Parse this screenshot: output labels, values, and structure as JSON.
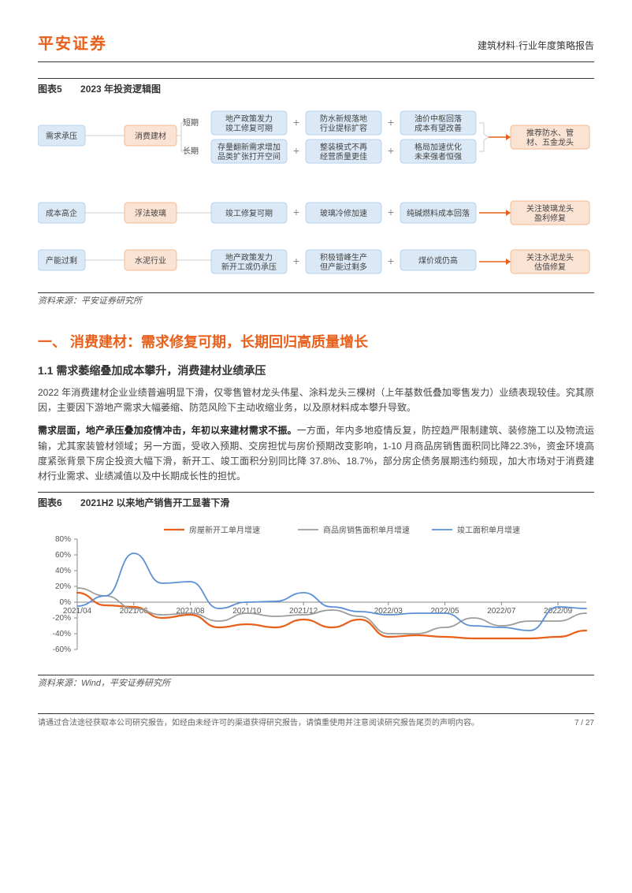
{
  "header": {
    "brand": "平安证券",
    "doc_type": "建筑材料·行业年度策略报告"
  },
  "figure5": {
    "label": "图表5",
    "title": "2023 年投资逻辑图",
    "source": "资料来源：平安证券研究所",
    "diagram": {
      "node_fill_blue": "#dbe9f6",
      "node_fill_orange": "#fbe3d4",
      "node_stroke_blue": "#b7d2eb",
      "node_stroke_orange": "#f0b98f",
      "node_text_color": "#444444",
      "connector_color": "#cccccc",
      "plus_color": "#888888",
      "arrow_color": "#e8601c",
      "font_size": 10,
      "left_nodes": [
        "需求承压",
        "成本高企",
        "产能过剩"
      ],
      "mid_nodes": [
        "消费建材",
        "浮法玻璃",
        "水泥行业"
      ],
      "mid_sublabels_top": [
        "短期",
        "长期"
      ],
      "row1a": [
        "地产政策发力\n竣工修复可期",
        "防水新规落地\n行业提标扩容",
        "油价中枢回落\n成本有望改善"
      ],
      "row1b": [
        "存量翻新需求增加\n品类扩张打开空间",
        "整装模式不再\n经营质量更佳",
        "格局加速优化\n未来强者恒强"
      ],
      "row1_out": "推荐防水、管\n材、五金龙头",
      "row2": [
        "竣工修复可期",
        "玻璃冷修加速",
        "纯碱燃料成本回落"
      ],
      "row2_out": "关注玻璃龙头\n盈利修复",
      "row3": [
        "地产政策发力\n新开工或仍承压",
        "积极错峰生产\n但产能过剩多",
        "煤价或仍高"
      ],
      "row3_out": "关注水泥龙头\n估值修复"
    }
  },
  "section1": {
    "title": "一、 消费建材：需求修复可期，长期回归高质量增长",
    "sub1_title": "1.1 需求萎缩叠加成本攀升，消费建材业绩承压",
    "para1": "2022 年消费建材企业业绩普遍明显下滑，仅零售管材龙头伟星、涂料龙头三棵树（上年基数低叠加零售发力）业绩表现较佳。究其原因，主要因下游地产需求大幅萎缩、防范风险下主动收缩业务，以及原材料成本攀升导致。",
    "para2_strong": "需求层面，地产承压叠加疫情冲击，年初以来建材需求不振。",
    "para2_rest": "一方面，年内多地疫情反复，防控趋严限制建筑、装修施工以及物流运输，尤其家装管材领域；另一方面，受收入预期、交房担忧与房价预期改变影响，1-10 月商品房销售面积同比降22.3%，资金环境高度紧张背景下房企投资大幅下滑，新开工、竣工面积分别同比降 37.8%、18.7%，部分房企债务展期违约频现，加大市场对于消费建材行业需求、业绩减值以及中长期成长性的担忧。"
  },
  "figure6": {
    "label": "图表6",
    "title": "2021H2 以来地产销售开工显著下滑",
    "source": "资料来源：Wind，平安证券研究所",
    "chart": {
      "type": "line",
      "background_color": "#ffffff",
      "axis_color": "#888888",
      "grid_color": "#e8e8e8",
      "font_size": 10,
      "ylim": [
        -60,
        80
      ],
      "ytick_step": 20,
      "x_labels": [
        "2021/04",
        "2021/06",
        "2021/08",
        "2021/10",
        "2021/12",
        "2022/03",
        "2022/05",
        "2022/07",
        "2022/09"
      ],
      "x_points_count": 19,
      "series": [
        {
          "name": "房屋新开工单月增速",
          "color": "#e8601c",
          "width": 2.2,
          "values": [
            12,
            -4,
            -6,
            -20,
            -16,
            -32,
            -28,
            -32,
            -22,
            -32,
            -22,
            -44,
            -42,
            -44,
            -46,
            -46,
            -46,
            -44,
            -36
          ]
        },
        {
          "name": "商品房销售面积单月增速",
          "color": "#9c9c9c",
          "width": 1.8,
          "values": [
            18,
            8,
            -8,
            -16,
            -14,
            -24,
            -14,
            -18,
            -16,
            -10,
            -18,
            -40,
            -40,
            -32,
            -20,
            -30,
            -24,
            -24,
            -14
          ]
        },
        {
          "name": "竣工面积单月增速",
          "color": "#5b8fd6",
          "width": 1.8,
          "values": [
            -5,
            8,
            62,
            24,
            26,
            -8,
            0,
            1,
            12,
            -6,
            -12,
            -16,
            -14,
            -14,
            -30,
            -32,
            -36,
            -6,
            -8
          ]
        }
      ]
    }
  },
  "footer": {
    "disclaimer": "请通过合法途径获取本公司研究报告，如经由未经许可的渠道获得研究报告，请慎重使用并注意阅读研究报告尾页的声明内容。",
    "page": "7 / 27"
  }
}
